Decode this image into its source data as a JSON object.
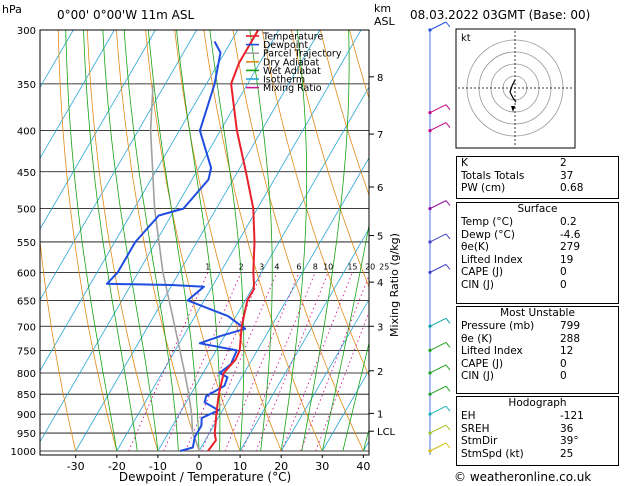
{
  "header": {
    "location": "0°00' 0°00'W 11m ASL",
    "date": "08.03.2022 03GMT (Base: 00)",
    "pressure_unit": "hPa",
    "height_unit_line1": "km",
    "height_unit_line2": "ASL"
  },
  "chart_data": {
    "type": "skew-t log-p",
    "xlabel": "Dewpoint / Temperature (°C)",
    "ylabel_right": "Mixing Ratio (g/kg)",
    "x_ticks": [
      -30,
      -20,
      -10,
      0,
      10,
      20,
      30,
      40
    ],
    "pressure_levels": [
      300,
      350,
      400,
      450,
      500,
      550,
      600,
      650,
      700,
      750,
      800,
      850,
      900,
      950,
      1000
    ],
    "height_km": [
      {
        "km": "8",
        "p": 343
      },
      {
        "km": "7",
        "p": 404
      },
      {
        "km": "6",
        "p": 470
      },
      {
        "km": "5",
        "p": 540
      },
      {
        "km": "4",
        "p": 617
      },
      {
        "km": "3",
        "p": 700
      },
      {
        "km": "2",
        "p": 795
      },
      {
        "km": "1",
        "p": 898
      },
      {
        "km": "LCL",
        "p": 945
      }
    ],
    "mixing_ratio_labels": [
      "1",
      "2",
      "3",
      "4",
      "6",
      "8",
      "10",
      "15",
      "20",
      "25"
    ],
    "mixing_ratio_values": [
      1,
      2,
      3,
      4,
      6,
      8,
      10,
      15,
      20,
      25
    ],
    "legend": [
      {
        "name": "Temperature",
        "color": "#e8202a"
      },
      {
        "name": "Dewpoint",
        "color": "#1f4de0"
      },
      {
        "name": "Parcel Trajectory",
        "color": "#a0a0a0"
      },
      {
        "name": "Dry Adiabat",
        "color": "#e08a16"
      },
      {
        "name": "Wet Adiabat",
        "color": "#14a314"
      },
      {
        "name": "Isotherm",
        "color": "#2aa6d6"
      },
      {
        "name": "Mixing Ratio",
        "color": "#d01896"
      }
    ],
    "series": [
      {
        "name": "Temperature",
        "points": [
          [
            1000,
            2.2
          ],
          [
            970,
            2.6
          ],
          [
            950,
            1.3
          ],
          [
            925,
            0.2
          ],
          [
            900,
            -1.0
          ],
          [
            850,
            -3.2
          ],
          [
            800,
            -5.0
          ],
          [
            770,
            -4.0
          ],
          [
            750,
            -4.3
          ],
          [
            700,
            -7.2
          ],
          [
            650,
            -9.5
          ],
          [
            630,
            -9.5
          ],
          [
            620,
            -10.2
          ],
          [
            600,
            -12.0
          ],
          [
            550,
            -16.0
          ],
          [
            500,
            -21.0
          ],
          [
            450,
            -28.0
          ],
          [
            400,
            -36.0
          ],
          [
            350,
            -44.0
          ],
          [
            330,
            -45.0
          ],
          [
            300,
            -45.0
          ]
        ]
      },
      {
        "name": "Dewpoint",
        "points": [
          [
            1000,
            -4.6
          ],
          [
            990,
            -2.0
          ],
          [
            960,
            -3.0
          ],
          [
            930,
            -3.0
          ],
          [
            910,
            -4.0
          ],
          [
            890,
            -1.0
          ],
          [
            870,
            -5.5
          ],
          [
            855,
            -6.0
          ],
          [
            830,
            -3.0
          ],
          [
            810,
            -3.5
          ],
          [
            800,
            -6.0
          ],
          [
            780,
            -4.5
          ],
          [
            750,
            -5.0
          ],
          [
            735,
            -15.0
          ],
          [
            720,
            -11.0
          ],
          [
            705,
            -6.0
          ],
          [
            680,
            -12.0
          ],
          [
            650,
            -24.0
          ],
          [
            625,
            -22.0
          ],
          [
            622,
            -30.0
          ],
          [
            620,
            -46.0
          ],
          [
            600,
            -45.0
          ],
          [
            550,
            -45.0
          ],
          [
            510,
            -43.0
          ],
          [
            500,
            -38.0
          ],
          [
            460,
            -36.0
          ],
          [
            445,
            -37.0
          ],
          [
            400,
            -45.0
          ],
          [
            350,
            -48.0
          ],
          [
            320,
            -51.0
          ],
          [
            310,
            -54.0
          ]
        ]
      },
      {
        "name": "Parcel Trajectory",
        "points": [
          [
            1000,
            0.2
          ],
          [
            950,
            -4.1
          ],
          [
            900,
            -7.0
          ],
          [
            850,
            -10.5
          ],
          [
            800,
            -14.5
          ],
          [
            700,
            -23.5
          ],
          [
            600,
            -34.0
          ],
          [
            500,
            -45.0
          ],
          [
            400,
            -57.0
          ],
          [
            350,
            -63.0
          ]
        ]
      }
    ]
  },
  "hodograph": {
    "label": "kt"
  },
  "indices": [
    {
      "label": "K",
      "value": "2"
    },
    {
      "label": "Totals Totals",
      "value": "37"
    },
    {
      "label": "PW (cm)",
      "value": "0.68"
    }
  ],
  "surface": {
    "title": "Surface",
    "rows": [
      {
        "label": "Temp (°C)",
        "value": "0.2"
      },
      {
        "label": "Dewp (°C)",
        "value": "-4.6"
      },
      {
        "label": "θe(K)",
        "value": "279"
      },
      {
        "label": "Lifted Index",
        "value": "19"
      },
      {
        "label": "CAPE (J)",
        "value": "0"
      },
      {
        "label": "CIN (J)",
        "value": "0"
      }
    ]
  },
  "most_unstable": {
    "title": "Most Unstable",
    "rows": [
      {
        "label": "Pressure (mb)",
        "value": "799"
      },
      {
        "label": "θe (K)",
        "value": "288"
      },
      {
        "label": "Lifted Index",
        "value": "12"
      },
      {
        "label": "CAPE (J)",
        "value": "0"
      },
      {
        "label": "CIN (J)",
        "value": "0"
      }
    ]
  },
  "hodograph_params": {
    "title": "Hodograph",
    "rows": [
      {
        "label": "EH",
        "value": "-121"
      },
      {
        "label": "SREH",
        "value": "36"
      },
      {
        "label": "StmDir",
        "value": "39°"
      },
      {
        "label": "StmSpd (kt)",
        "value": "25"
      }
    ]
  },
  "credit": "© weatheronline.co.uk"
}
